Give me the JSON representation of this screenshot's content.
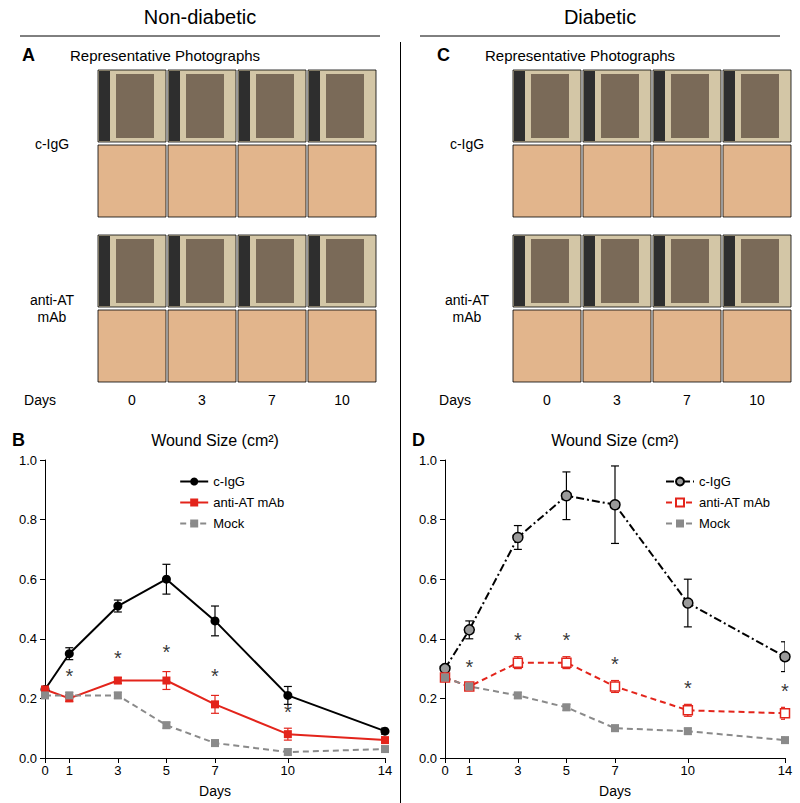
{
  "figure": {
    "headers": [
      "Non-diabetic",
      "Diabetic"
    ],
    "panels": [
      {
        "panel_label": "A",
        "title": "Representative Photographs",
        "rows": [
          "c-IgG",
          "anti-AT\nmAb"
        ],
        "x_label": "Days",
        "days": [
          0,
          3,
          7,
          10
        ]
      },
      {
        "panel_label": "C",
        "title": "Representative Photographs",
        "rows": [
          "c-IgG",
          "anti-AT\nmAb"
        ],
        "x_label": "Days",
        "days": [
          0,
          3,
          7,
          10
        ]
      }
    ]
  },
  "chart_data": [
    {
      "type": "line",
      "panel_label": "B",
      "title": "Wound Size (cm²)",
      "x_label": "Days",
      "x": [
        0,
        1,
        3,
        5,
        7,
        10,
        14
      ],
      "xlim": [
        0,
        14
      ],
      "xticks": [
        0,
        1,
        3,
        5,
        7,
        10,
        14
      ],
      "ylim": [
        0,
        1
      ],
      "yticks": [
        {
          "value": 0,
          "label": "0.0"
        },
        0.2,
        0.4,
        0.6,
        0.8,
        {
          "value": 1,
          "label": "1.0"
        }
      ],
      "grid": false,
      "legend": "upper center",
      "series": [
        {
          "name": "c-IgG",
          "color": "#000000",
          "marker": "circle",
          "line_style": "solid",
          "values": [
            0.23,
            0.35,
            0.51,
            0.6,
            0.46,
            0.21,
            0.09
          ],
          "errors": [
            0.01,
            0.02,
            0.02,
            0.05,
            0.05,
            0.03,
            0.01
          ]
        },
        {
          "name": "anti-AT mAb",
          "color": "#e3241b",
          "marker": "square",
          "line_style": "solid",
          "values": [
            0.23,
            0.2,
            0.26,
            0.26,
            0.18,
            0.08,
            0.06
          ],
          "errors": [
            0.01,
            0.01,
            0.01,
            0.03,
            0.03,
            0.02,
            0.01
          ]
        },
        {
          "name": "Mock",
          "color": "#8a8a8a",
          "marker": "square",
          "line_style": "dashed",
          "values": [
            0.21,
            0.21,
            0.21,
            0.11,
            0.05,
            0.02,
            0.03
          ],
          "errors": [
            0.01,
            0.01,
            0.01,
            0.01,
            0.01,
            0.01,
            0.01
          ]
        }
      ],
      "annotations": [
        {
          "text": "*",
          "x": 1,
          "y": 0.24
        },
        {
          "text": "*",
          "x": 3,
          "y": 0.3
        },
        {
          "text": "*",
          "x": 5,
          "y": 0.32
        },
        {
          "text": "*",
          "x": 7,
          "y": 0.24
        },
        {
          "text": "*",
          "x": 10,
          "y": 0.12
        }
      ]
    },
    {
      "type": "line",
      "panel_label": "D",
      "title": "Wound Size (cm²)",
      "x_label": "Days",
      "x": [
        0,
        1,
        3,
        5,
        7,
        10,
        14
      ],
      "xlim": [
        0,
        14
      ],
      "xticks": [
        0,
        1,
        3,
        5,
        7,
        10,
        14
      ],
      "ylim": [
        0,
        1
      ],
      "yticks": [
        {
          "value": 0,
          "label": "0.0"
        },
        0.2,
        0.4,
        0.6,
        0.8,
        {
          "value": 1,
          "label": "1.0"
        }
      ],
      "grid": false,
      "legend": "upper right",
      "series": [
        {
          "name": "c-IgG",
          "color": "#000000",
          "marker": "shaded-circle",
          "line_style": "dashdot",
          "values": [
            0.3,
            0.43,
            0.74,
            0.88,
            0.85,
            0.52,
            0.34
          ],
          "errors": [
            0.01,
            0.03,
            0.04,
            0.08,
            0.13,
            0.08,
            0.05
          ]
        },
        {
          "name": "anti-AT mAb",
          "color": "#e3241b",
          "marker": "open-square",
          "line_style": "dashed",
          "values": [
            0.27,
            0.24,
            0.32,
            0.32,
            0.24,
            0.16,
            0.15
          ],
          "errors": [
            0.01,
            0.01,
            0.02,
            0.02,
            0.02,
            0.02,
            0.02
          ]
        },
        {
          "name": "Mock",
          "color": "#8a8a8a",
          "marker": "square",
          "line_style": "dashed",
          "values": [
            0.27,
            0.24,
            0.21,
            0.17,
            0.1,
            0.09,
            0.06
          ],
          "errors": [
            0.01,
            0.01,
            0.01,
            0.01,
            0.01,
            0.01,
            0.01
          ]
        }
      ],
      "annotations": [
        {
          "text": "*",
          "x": 1,
          "y": 0.27
        },
        {
          "text": "*",
          "x": 3,
          "y": 0.36
        },
        {
          "text": "*",
          "x": 5,
          "y": 0.36
        },
        {
          "text": "*",
          "x": 7,
          "y": 0.28
        },
        {
          "text": "*",
          "x": 10,
          "y": 0.2
        },
        {
          "text": "*",
          "x": 14,
          "y": 0.19
        }
      ]
    }
  ]
}
